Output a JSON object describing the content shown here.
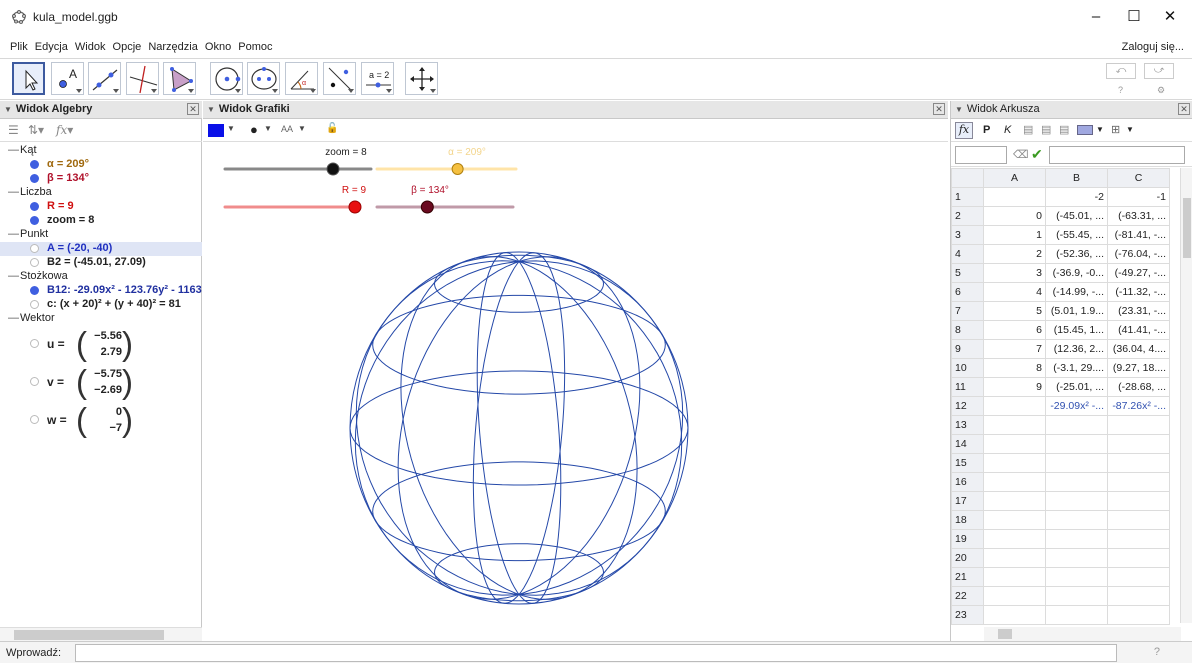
{
  "window": {
    "title": "kula_model.ggb",
    "minimize": "–",
    "maximize": "☐",
    "close": "✕"
  },
  "menu": {
    "items": [
      "Plik",
      "Edycja",
      "Widok",
      "Opcje",
      "Narzędzia",
      "Okno",
      "Pomoc"
    ],
    "login": "Zaloguj się..."
  },
  "toolbar": {
    "tools": [
      "move-tool",
      "point-tool",
      "line-tool",
      "perpendicular-tool",
      "polygon-tool",
      "circle-tool",
      "conic-tool",
      "angle-tool",
      "reflect-tool",
      "slider-tool",
      "move-view-tool"
    ],
    "slider_tool_label": "a = 2",
    "undo": "⤺",
    "redo": "⤻",
    "help": "?",
    "settings": "⚙"
  },
  "algebra": {
    "title": "Widok Algebry",
    "categories": {
      "kat": "Kąt",
      "liczba": "Liczba",
      "punkt": "Punkt",
      "stozkowa": "Stożkowa",
      "wektor": "Wektor"
    },
    "items": {
      "alpha": "α = 209°",
      "beta": "β = 134°",
      "R": "R = 9",
      "zoom": "zoom = 8",
      "A": "A = (-20, -40)",
      "B2": "B2 = (-45.01, 27.09)",
      "B12": "B12: -29.09x² - 123.76y² - 1163",
      "c": "c: (x + 20)² + (y + 40)² = 81"
    },
    "vectors": [
      {
        "name": "u =",
        "x": "−5.56",
        "y": "2.79"
      },
      {
        "name": "v =",
        "x": "−5.75",
        "y": "−2.69"
      },
      {
        "name": "w =",
        "x": "0",
        "y": "−7"
      }
    ],
    "colors": {
      "alpha": "#a06a10",
      "beta": "#b0102a",
      "R": "#d01010",
      "A": "#2030c0",
      "B12": "#2030a0"
    }
  },
  "graphics": {
    "title": "Widok Grafiki",
    "sliders": {
      "zoom": {
        "label": "zoom = 8",
        "fraction": 0.74
      },
      "alpha": {
        "label": "α = 209°",
        "fraction": 0.58
      },
      "R": {
        "label": "R = 9",
        "fraction": 0.97
      },
      "beta": {
        "label": "β = 134°",
        "fraction": 0.37
      }
    },
    "colors": {
      "sphere": "#2448a8",
      "zoom_track": "#888888",
      "alpha_track": "#ffe4a8",
      "R_track": "#f08c8c",
      "beta_track": "#c09aa8"
    }
  },
  "sheet": {
    "title": "Widok Arkusza",
    "columns": [
      "A",
      "B",
      "C"
    ],
    "rows": [
      {
        "n": "1",
        "A": "",
        "B": "-2",
        "C": "-1"
      },
      {
        "n": "2",
        "A": "0",
        "B": "(-45.01, ...",
        "C": "(-63.31, ..."
      },
      {
        "n": "3",
        "A": "1",
        "B": "(-55.45, ...",
        "C": "(-81.41, -..."
      },
      {
        "n": "4",
        "A": "2",
        "B": "(-52.36, ...",
        "C": "(-76.04, -..."
      },
      {
        "n": "5",
        "A": "3",
        "B": "(-36.9, -0...",
        "C": "(-49.27, -..."
      },
      {
        "n": "6",
        "A": "4",
        "B": "(-14.99, -...",
        "C": "(-11.32, -..."
      },
      {
        "n": "7",
        "A": "5",
        "B": "(5.01, 1.9...",
        "C": "(23.31, -..."
      },
      {
        "n": "8",
        "A": "6",
        "B": "(15.45, 1...",
        "C": "(41.41, -..."
      },
      {
        "n": "9",
        "A": "7",
        "B": "(12.36, 2...",
        "C": "(36.04, 4...."
      },
      {
        "n": "10",
        "A": "8",
        "B": "(-3.1, 29....",
        "C": "(9.27, 18...."
      },
      {
        "n": "11",
        "A": "9",
        "B": "(-25.01, ...",
        "C": "(-28.68, ..."
      },
      {
        "n": "12",
        "A": "",
        "B": "-29.09x² -...",
        "C": "-87.26x² -..."
      },
      {
        "n": "13",
        "A": "",
        "B": "",
        "C": ""
      },
      {
        "n": "14",
        "A": "",
        "B": "",
        "C": ""
      },
      {
        "n": "15",
        "A": "",
        "B": "",
        "C": ""
      },
      {
        "n": "16",
        "A": "",
        "B": "",
        "C": ""
      },
      {
        "n": "17",
        "A": "",
        "B": "",
        "C": ""
      },
      {
        "n": "18",
        "A": "",
        "B": "",
        "C": ""
      },
      {
        "n": "19",
        "A": "",
        "B": "",
        "C": ""
      },
      {
        "n": "20",
        "A": "",
        "B": "",
        "C": ""
      },
      {
        "n": "21",
        "A": "",
        "B": "",
        "C": ""
      },
      {
        "n": "22",
        "A": "",
        "B": "",
        "C": ""
      },
      {
        "n": "23",
        "A": "",
        "B": "",
        "C": ""
      }
    ]
  },
  "inputbar": {
    "label": "Wprowadź:",
    "value": "",
    "help": "?"
  }
}
